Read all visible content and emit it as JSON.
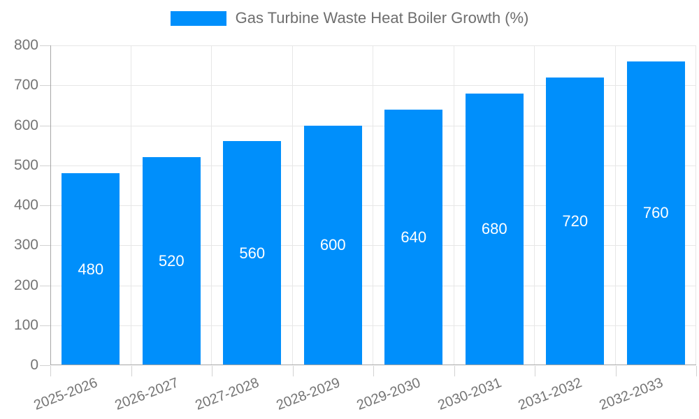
{
  "chart_data": {
    "type": "bar",
    "title": "Gas Turbine Waste Heat Boiler Growth (%)",
    "categories": [
      "2025-2026",
      "2026-2027",
      "2027-2028",
      "2028-2029",
      "2029-2030",
      "2030-2031",
      "2031-2032",
      "2032-2033"
    ],
    "values": [
      480,
      520,
      560,
      600,
      640,
      680,
      720,
      760
    ],
    "xlabel": "",
    "ylabel": "",
    "ylim": [
      0,
      800
    ],
    "ytick_step": 100,
    "yticks": [
      0,
      100,
      200,
      300,
      400,
      500,
      600,
      700,
      800
    ],
    "grid": true,
    "legend_position": "top",
    "value_labels": "inside-center"
  },
  "legend": {
    "label": "Gas Turbine Waste Heat Boiler Growth (%)"
  },
  "colors": {
    "bar": "#008FFB",
    "grid": "#e7e7e7",
    "axis_line": "#a6a6a6",
    "tick": "#d2d2d2",
    "tick_label": "#757575",
    "value_label": "#ffffff",
    "legend_text": "#6e6e6e",
    "background": "#ffffff"
  }
}
